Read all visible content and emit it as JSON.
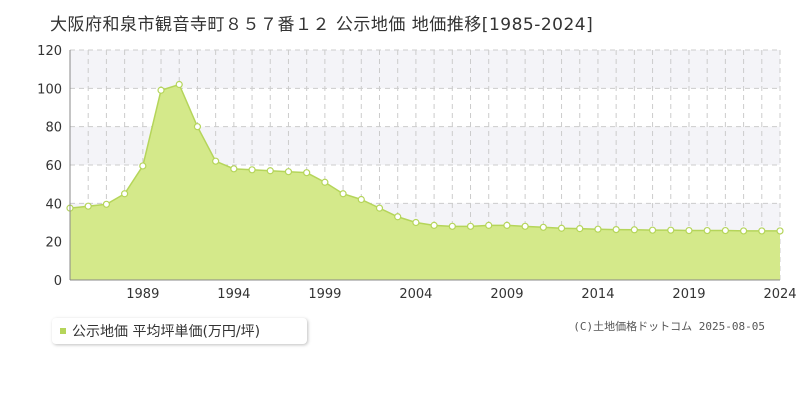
{
  "title": "大阪府和泉市観音寺町８５７番１２ 公示地価 地価推移[1985-2024]",
  "legend": {
    "label": "公示地価 平均坪単価(万円/坪)"
  },
  "copyright": "(C)土地価格ドットコム 2025-08-05",
  "colors": {
    "fill": "#d4e98a",
    "line": "#b5d55a",
    "marker_fill": "#ffffff",
    "grid": "#cccccc",
    "band": "#f4f4f8",
    "legend_marker": "#b5d55a"
  },
  "chart_data": {
    "type": "area",
    "x_ticks": [
      "1989",
      "1994",
      "1999",
      "2004",
      "2009",
      "2014",
      "2019",
      "2024"
    ],
    "y_ticks": [
      "0",
      "20",
      "40",
      "60",
      "80",
      "100",
      "120"
    ],
    "ylim": [
      0,
      120
    ],
    "xlim": [
      1985,
      2024
    ],
    "series": [
      {
        "name": "公示地価 平均坪単価(万円/坪)",
        "x": [
          1985,
          1986,
          1987,
          1988,
          1989,
          1990,
          1991,
          1992,
          1993,
          1994,
          1995,
          1996,
          1997,
          1998,
          1999,
          2000,
          2001,
          2002,
          2003,
          2004,
          2005,
          2006,
          2007,
          2008,
          2009,
          2010,
          2011,
          2012,
          2013,
          2014,
          2015,
          2016,
          2017,
          2018,
          2019,
          2020,
          2021,
          2022,
          2023,
          2024
        ],
        "values": [
          37.5,
          38.5,
          39.5,
          45,
          59.5,
          99,
          102,
          80,
          62,
          58,
          57.5,
          57,
          56.5,
          56,
          51,
          45,
          42,
          37.5,
          33,
          30,
          28.5,
          28,
          28,
          28.5,
          28.5,
          28,
          27.5,
          27,
          26.8,
          26.5,
          26.3,
          26.2,
          26,
          26,
          25.8,
          25.8,
          25.8,
          25.6,
          25.6,
          25.6
        ]
      }
    ]
  }
}
